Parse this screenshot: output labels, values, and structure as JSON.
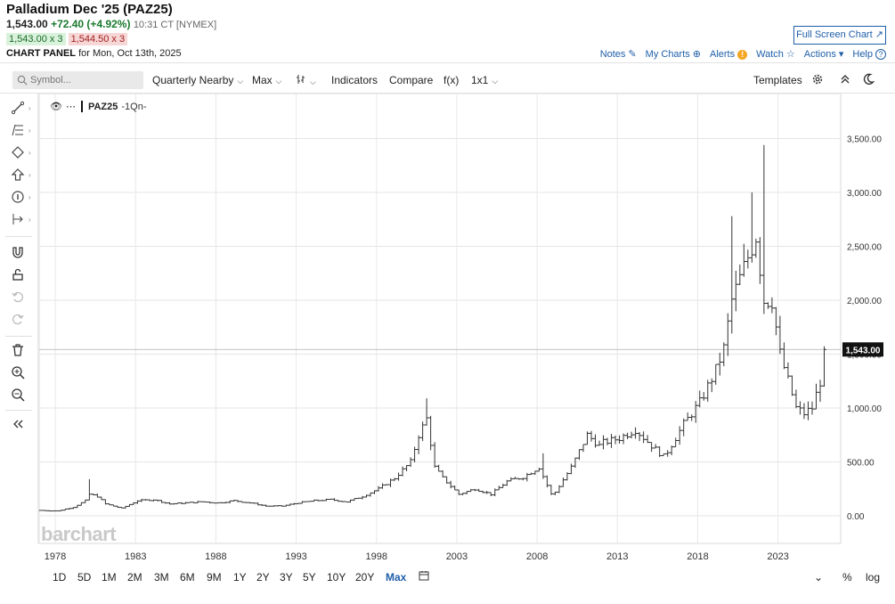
{
  "header": {
    "title": "Palladium Dec '25 (PAZ25)",
    "last": "1,543.00",
    "change": "+72.40 (+4.92%)",
    "time": "10:31 CT [NYMEX]",
    "bid": "1,543.00 x 3",
    "ask": "1,544.50 x 3",
    "panel_label": "CHART PANEL",
    "panel_date": "for Mon, Oct 13th, 2025",
    "fullscreen": "Full Screen Chart"
  },
  "toplinks": {
    "notes": "Notes",
    "mycharts": "My Charts",
    "alerts": "Alerts",
    "watch": "Watch",
    "actions": "Actions",
    "help": "Help"
  },
  "toolbar": {
    "search_placeholder": "Symbol...",
    "period": "Quarterly Nearby",
    "range": "Max",
    "indicators": "Indicators",
    "compare": "Compare",
    "fx": "f(x)",
    "layout": "1x1",
    "templates": "Templates"
  },
  "legend": {
    "symbol": "PAZ25",
    "period": "-1Qn-"
  },
  "brand": "barchart",
  "ranges": [
    "1D",
    "5D",
    "1M",
    "2M",
    "3M",
    "6M",
    "9M",
    "1Y",
    "2Y",
    "3Y",
    "5Y",
    "10Y",
    "20Y",
    "Max"
  ],
  "active_range": "Max",
  "bottom_right": {
    "pct": "%",
    "log": "log"
  },
  "colors": {
    "link": "#1f5fa8",
    "up": "#1a7a2e",
    "down": "#a02020",
    "bar": "#333333"
  },
  "chart_data": {
    "type": "bar",
    "style": "ohlc",
    "ylim": [
      -200,
      3750
    ],
    "yticks": [
      0,
      500,
      1000,
      1500,
      2000,
      2500,
      3000,
      3500
    ],
    "ytick_labels": [
      "0.00",
      "500.00",
      "1,000.00",
      "1,500.00",
      "2,000.00",
      "2,500.00",
      "3,000.00",
      "3,500.00"
    ],
    "xlim": [
      1977,
      2026.9
    ],
    "xticks": [
      1978,
      1983,
      1988,
      1993,
      1998,
      2003,
      2008,
      2013,
      2018,
      2023
    ],
    "last_price": 1543,
    "last_price_label": "1,543.00",
    "grid": true,
    "series": [
      {
        "anchors": [
          [
            1977.0,
            50
          ],
          [
            1978.0,
            45
          ],
          [
            1979.0,
            80
          ],
          [
            1979.75,
            140
          ],
          [
            1980.0,
            200
          ],
          [
            1980.5,
            180
          ],
          [
            1981.0,
            110
          ],
          [
            1982.0,
            70
          ],
          [
            1983.0,
            140
          ],
          [
            1984.0,
            150
          ],
          [
            1985.0,
            110
          ],
          [
            1986.0,
            120
          ],
          [
            1987.0,
            130
          ],
          [
            1988.0,
            120
          ],
          [
            1989.0,
            140
          ],
          [
            1990.0,
            120
          ],
          [
            1991.0,
            90
          ],
          [
            1992.0,
            90
          ],
          [
            1993.0,
            120
          ],
          [
            1994.0,
            140
          ],
          [
            1995.0,
            150
          ],
          [
            1996.0,
            130
          ],
          [
            1997.0,
            180
          ],
          [
            1998.0,
            250
          ],
          [
            1999.0,
            350
          ],
          [
            2000.0,
            500
          ],
          [
            2000.5,
            750
          ],
          [
            2001.0,
            900
          ],
          [
            2001.5,
            450
          ],
          [
            2002.0,
            350
          ],
          [
            2003.0,
            200
          ],
          [
            2004.0,
            250
          ],
          [
            2005.0,
            200
          ],
          [
            2006.0,
            320
          ],
          [
            2007.0,
            360
          ],
          [
            2008.0,
            450
          ],
          [
            2008.75,
            200
          ],
          [
            2009.0,
            220
          ],
          [
            2010.0,
            450
          ],
          [
            2011.0,
            750
          ],
          [
            2011.75,
            650
          ],
          [
            2012.0,
            680
          ],
          [
            2013.0,
            720
          ],
          [
            2014.0,
            800
          ],
          [
            2015.0,
            650
          ],
          [
            2015.75,
            550
          ],
          [
            2016.0,
            600
          ],
          [
            2017.0,
            850
          ],
          [
            2018.0,
            1050
          ],
          [
            2019.0,
            1350
          ],
          [
            2019.5,
            1550
          ],
          [
            2020.0,
            2000
          ],
          [
            2020.5,
            2200
          ],
          [
            2021.0,
            2400
          ],
          [
            2021.5,
            2600
          ],
          [
            2022.0,
            2000
          ],
          [
            2022.5,
            2000
          ],
          [
            2023.0,
            1500
          ],
          [
            2023.5,
            1250
          ],
          [
            2024.0,
            1000
          ],
          [
            2024.5,
            950
          ],
          [
            2025.0,
            1000
          ],
          [
            2025.5,
            1250
          ],
          [
            2025.75,
            1543
          ]
        ],
        "spikes": [
          [
            1980.0,
            340
          ],
          [
            2001.0,
            1090
          ],
          [
            2008.25,
            580
          ],
          [
            2020.0,
            2780
          ],
          [
            2021.25,
            3000
          ],
          [
            2022.0,
            3440
          ]
        ]
      }
    ]
  }
}
